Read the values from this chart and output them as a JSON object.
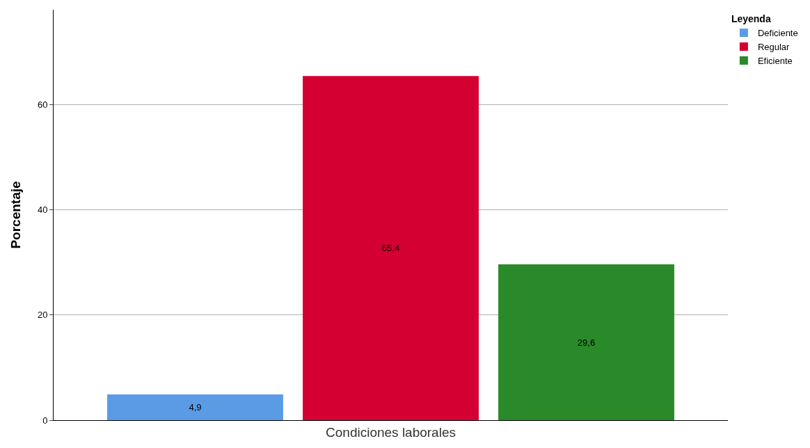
{
  "chart_data": {
    "type": "bar",
    "categories": [
      "Condiciones laborales"
    ],
    "ylabel": "Porcentaje",
    "legend_title": "Leyenda",
    "series": [
      {
        "name": "Deficiente",
        "color": "#5b9be6",
        "values": [
          4.9
        ],
        "value_labels": [
          "4,9"
        ]
      },
      {
        "name": "Regular",
        "color": "#d50032",
        "values": [
          65.4
        ],
        "value_labels": [
          "65,4"
        ]
      },
      {
        "name": "Eficiente",
        "color": "#2a8a2a",
        "values": [
          29.6
        ],
        "value_labels": [
          "29,6"
        ]
      }
    ],
    "ylim": [
      0,
      78
    ],
    "yticks": [
      0,
      20,
      40,
      60
    ],
    "grid": "y",
    "legend": "top right"
  }
}
